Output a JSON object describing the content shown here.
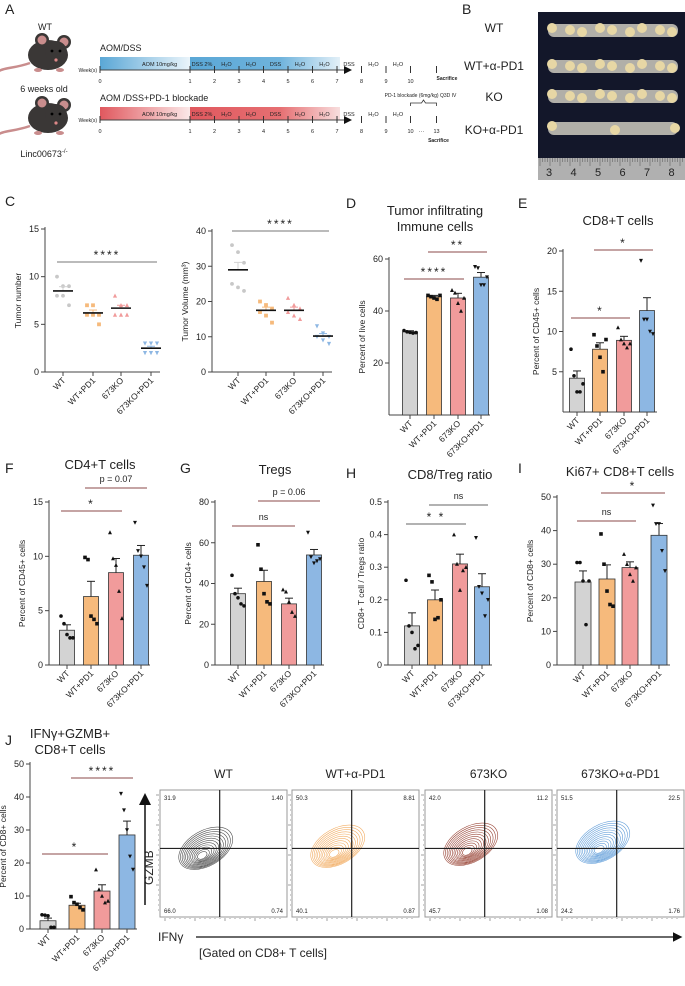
{
  "panel_letters": [
    "A",
    "B",
    "C",
    "D",
    "E",
    "F",
    "G",
    "H",
    "I",
    "J"
  ],
  "panel_a": {
    "mouse_labels": {
      "wt": "WT",
      "age": "6 weeks old",
      "ko": "Linc00673",
      "ko_sup": "-/-"
    },
    "protocols": [
      {
        "title": "AOM/DSS",
        "axis_label": "Week(s)",
        "agent": "AOM  10mg/kg",
        "color": "#5aa7d6",
        "segments": [
          "DSS 2%",
          "H₂O",
          "H₂O",
          "DSS",
          "H₂O",
          "H₂O",
          "DSS",
          "H₂O",
          "H₂O"
        ],
        "weeks": [
          "0",
          "1",
          "2",
          "3",
          "4",
          "5",
          "6",
          "7",
          "8",
          "9",
          "10"
        ],
        "end_label": "Sacrifice"
      },
      {
        "title": "AOM /DSS+PD-1 blockade",
        "axis_label": "Week(s)",
        "agent": "AOM  10mg/kg",
        "color": "#e0585e",
        "segments": [
          "DSS 2%",
          "H₂O",
          "H₂O",
          "DSS",
          "H₂O",
          "H₂O",
          "DSS",
          "H₂O",
          "H₂O"
        ],
        "weeks": [
          "0",
          "1",
          "2",
          "3",
          "4",
          "5",
          "6",
          "7",
          "8",
          "9",
          "10"
        ],
        "extra_weeks": [
          "···",
          "13"
        ],
        "end_label": "Sacrifice",
        "note": "PD-1 blockade (6mg/kg) Q3D IV"
      }
    ]
  },
  "panel_b": {
    "labels": [
      "WT",
      "WT+α-PD1",
      "KO",
      "KO+α-PD1"
    ],
    "ruler_labels": [
      "3",
      "4",
      "5",
      "6",
      "7",
      "8"
    ]
  },
  "group_colors": {
    "WT": "#d3d3d3",
    "WT+PD1": "#f6ba7c",
    "673KO": "#f19b9b",
    "673KO+PD1": "#8db7e3"
  },
  "chart_data": [
    {
      "id": "C1",
      "panel": "C",
      "type": "scatter",
      "title": "",
      "ylabel": "Tumor number",
      "ylim": [
        0,
        15
      ],
      "yticks": [
        0,
        5,
        10,
        15
      ],
      "categories": [
        "WT",
        "WT+PD1",
        "673KO",
        "673KO+PD1"
      ],
      "means": [
        8.5,
        6.2,
        6.7,
        2.5
      ],
      "sem": [
        0.45,
        0.3,
        0.3,
        0.2
      ],
      "points": [
        [
          10,
          9,
          9,
          8,
          8,
          7
        ],
        [
          7,
          7,
          6,
          6,
          6,
          5
        ],
        [
          8,
          7,
          7,
          6,
          6,
          6
        ],
        [
          3,
          3,
          3,
          2,
          2,
          2
        ]
      ],
      "significance": [
        {
          "groups": [
            0,
            3
          ],
          "label": "****"
        }
      ]
    },
    {
      "id": "C2",
      "panel": "C",
      "type": "scatter",
      "title": "",
      "ylabel": "Tumor Volume (mm³)",
      "ylim": [
        0,
        40
      ],
      "yticks": [
        0,
        10,
        20,
        30,
        40
      ],
      "categories": [
        "WT",
        "WT+PD1",
        "673KO",
        "673KO+PD1"
      ],
      "means": [
        29,
        17.5,
        17.5,
        10.2
      ],
      "sem": [
        2.1,
        0.9,
        0.9,
        0.7
      ],
      "points": [
        [
          36,
          34,
          31,
          25,
          24,
          23
        ],
        [
          20,
          19,
          18,
          17,
          16,
          14
        ],
        [
          21,
          19,
          18,
          17,
          16,
          15
        ],
        [
          13,
          11,
          10,
          10,
          9,
          8
        ]
      ],
      "significance": [
        {
          "groups": [
            0,
            3
          ],
          "label": "****"
        }
      ]
    },
    {
      "id": "D",
      "panel": "D",
      "type": "bar",
      "title": [
        "Tumor infiltrating",
        "Immune cells"
      ],
      "ylabel": "Percent of live cells",
      "ylim": [
        0,
        60
      ],
      "yticks": [
        20,
        40,
        60
      ],
      "categories": [
        "WT",
        "WT+PD1",
        "673KO",
        "673KO+PD1"
      ],
      "means": [
        32,
        45.5,
        45,
        53
      ],
      "sem": [
        0.4,
        0.5,
        1.8,
        1.8
      ],
      "points": [
        [
          32.5,
          32,
          31.8,
          31.5,
          31.7
        ],
        [
          46,
          45.5,
          45,
          44.5,
          46
        ],
        [
          48,
          47,
          43,
          40,
          45
        ],
        [
          57,
          56.5,
          50,
          50,
          53
        ]
      ],
      "significance": [
        {
          "groups": [
            0,
            2
          ],
          "label": "****"
        },
        {
          "groups": [
            1,
            3
          ],
          "label": "**"
        }
      ]
    },
    {
      "id": "E",
      "panel": "E",
      "type": "bar",
      "title": [
        "CD8+T cells"
      ],
      "ylabel": "Percent of CD45+ cells",
      "ylim": [
        0,
        20
      ],
      "yticks": [
        5,
        10,
        15,
        20
      ],
      "categories": [
        "WT",
        "WT+PD1",
        "673KO",
        "673KO+PD1"
      ],
      "means": [
        4.2,
        7.8,
        8.9,
        12.6
      ],
      "sem": [
        0.9,
        0.8,
        0.5,
        1.6
      ],
      "points": [
        [
          7.8,
          4.5,
          2.5,
          2.5,
          3.5
        ],
        [
          9.6,
          8.2,
          6.8,
          5,
          9
        ],
        [
          10.5,
          9,
          8.5,
          8,
          8.5
        ],
        [
          18.8,
          11.5,
          11.5,
          10,
          9.7
        ]
      ],
      "significance": [
        {
          "groups": [
            0,
            2
          ],
          "label": "*"
        },
        {
          "groups": [
            1,
            3
          ],
          "label": "*"
        }
      ]
    },
    {
      "id": "F",
      "panel": "F",
      "type": "bar",
      "title": [
        "CD4+T cells"
      ],
      "ylabel": "Percent of CD45+ cells",
      "ylim": [
        0,
        15
      ],
      "yticks": [
        0,
        5,
        10,
        15
      ],
      "categories": [
        "WT",
        "WT+PD1",
        "673KO",
        "673KO+PD1"
      ],
      "means": [
        3.2,
        6.3,
        8.5,
        10.1
      ],
      "sem": [
        0.5,
        1.4,
        1.3,
        0.9
      ],
      "points": [
        [
          4.5,
          3.8,
          2.8,
          2.5,
          2.5
        ],
        [
          9.9,
          9.7,
          4.5,
          4.2,
          3.8
        ],
        [
          12.2,
          9.8,
          9.2,
          6.8,
          4.3
        ],
        [
          13.1,
          10.5,
          10,
          9,
          7.3
        ]
      ],
      "significance": [
        {
          "groups": [
            0,
            2
          ],
          "label": "*"
        },
        {
          "groups": [
            1,
            3
          ],
          "label": "p = 0.07"
        }
      ]
    },
    {
      "id": "G",
      "panel": "G",
      "type": "bar",
      "title": [
        "Tregs"
      ],
      "ylabel": "Percent of CD4+ cells",
      "ylim": [
        0,
        80
      ],
      "yticks": [
        0,
        20,
        40,
        60,
        80
      ],
      "categories": [
        "WT",
        "WT+PD1",
        "673KO",
        "673KO+PD1"
      ],
      "means": [
        35,
        41,
        30,
        54
      ],
      "sem": [
        2.7,
        5.5,
        2.8,
        2.7
      ],
      "points": [
        [
          44,
          35,
          33,
          30,
          29
        ],
        [
          59,
          47,
          35,
          31,
          30
        ],
        [
          37,
          36,
          31,
          26,
          24
        ],
        [
          65,
          53,
          50,
          51,
          52
        ]
      ],
      "significance": [
        {
          "groups": [
            0,
            2
          ],
          "label": "ns"
        },
        {
          "groups": [
            1,
            3
          ],
          "label": "p = 0.06"
        }
      ]
    },
    {
      "id": "H",
      "panel": "H",
      "type": "bar",
      "title": [
        "CD8/Treg ratio"
      ],
      "ylabel": "CD8+ T cell / Tregs ratio",
      "ylim": [
        0,
        0.5
      ],
      "yticks": [
        0,
        0.1,
        0.2,
        0.3,
        0.4,
        0.5
      ],
      "categories": [
        "WT",
        "WT+PD1",
        "673KO",
        "673KO+PD1"
      ],
      "means": [
        0.12,
        0.2,
        0.31,
        0.24
      ],
      "sem": [
        0.04,
        0.03,
        0.03,
        0.04
      ],
      "points": [
        [
          0.26,
          0.12,
          0.1,
          0.05,
          0.06
        ],
        [
          0.275,
          0.255,
          0.14,
          0.145,
          0.2
        ],
        [
          0.4,
          0.31,
          0.23,
          0.29,
          0.3
        ],
        [
          0.39,
          0.24,
          0.22,
          0.15,
          0.2
        ]
      ],
      "significance": [
        {
          "groups": [
            0,
            2
          ],
          "label": "* *"
        },
        {
          "groups": [
            1,
            3
          ],
          "label": "ns"
        }
      ]
    },
    {
      "id": "I",
      "panel": "I",
      "type": "bar",
      "title": [
        "Ki67+ CD8+T cells"
      ],
      "ylabel": "Percent of CD8+ cells",
      "ylim": [
        0,
        50
      ],
      "yticks": [
        0,
        10,
        20,
        30,
        40,
        50
      ],
      "categories": [
        "WT",
        "WT+PD1",
        "673KO",
        "673KO+PD1"
      ],
      "means": [
        24.7,
        25.6,
        29,
        38.6
      ],
      "sem": [
        3.3,
        4.2,
        1.7,
        3.5
      ],
      "points": [
        [
          30.5,
          30.5,
          25,
          12,
          25
        ],
        [
          39,
          30,
          22,
          18,
          17.5
        ],
        [
          33,
          30,
          27,
          25,
          29
        ],
        [
          47.5,
          42,
          42,
          34,
          28
        ]
      ],
      "significance": [
        {
          "groups": [
            0,
            2
          ],
          "label": "ns"
        },
        {
          "groups": [
            1,
            3
          ],
          "label": "*"
        }
      ]
    },
    {
      "id": "J",
      "panel": "J",
      "type": "bar",
      "title": [
        "IFNγ+GZMB+",
        "CD8+T cells"
      ],
      "ylabel": "Percent of CD8+ cells",
      "ylim": [
        0,
        50
      ],
      "yticks": [
        0,
        10,
        20,
        30,
        40,
        50
      ],
      "categories": [
        "WT",
        "WT+PD1",
        "673KO",
        "673KO+PD1"
      ],
      "means": [
        2.5,
        7.2,
        11.5,
        28.5
      ],
      "sem": [
        0.8,
        0.6,
        1.9,
        4.2
      ],
      "points": [
        [
          4.3,
          4.2,
          4,
          0.5,
          0.5
        ],
        [
          9.8,
          8,
          7.5,
          6.5,
          5.8
        ],
        [
          18,
          12,
          10,
          8,
          8.5
        ],
        [
          41,
          36,
          30,
          22,
          18
        ]
      ],
      "significance": [
        {
          "groups": [
            0,
            2
          ],
          "label": "*"
        },
        {
          "groups": [
            1,
            3
          ],
          "label": "****"
        }
      ]
    }
  ],
  "flow": {
    "y_label": "GZMB",
    "x_label": "IFNγ",
    "gate_label": "[Gated on CD8+ T cells]",
    "plots": [
      {
        "title": "WT",
        "color": "#333333",
        "quadrants": {
          "ul": "31.9",
          "ur": "1.40",
          "ll": "66.0",
          "lr": "0.74"
        }
      },
      {
        "title": "WT+α-PD1",
        "color": "#f0a04a",
        "quadrants": {
          "ul": "50.3",
          "ur": "8.81",
          "ll": "40.1",
          "lr": "0.87"
        }
      },
      {
        "title": "673KO",
        "color": "#8b2a1a",
        "quadrants": {
          "ul": "42.0",
          "ur": "11.2",
          "ll": "45.7",
          "lr": "1.08"
        }
      },
      {
        "title": "673KO+α-PD1",
        "color": "#4a8fd4",
        "quadrants": {
          "ul": "51.5",
          "ur": "22.5",
          "ll": "24.2",
          "lr": "1.76"
        }
      }
    ]
  }
}
